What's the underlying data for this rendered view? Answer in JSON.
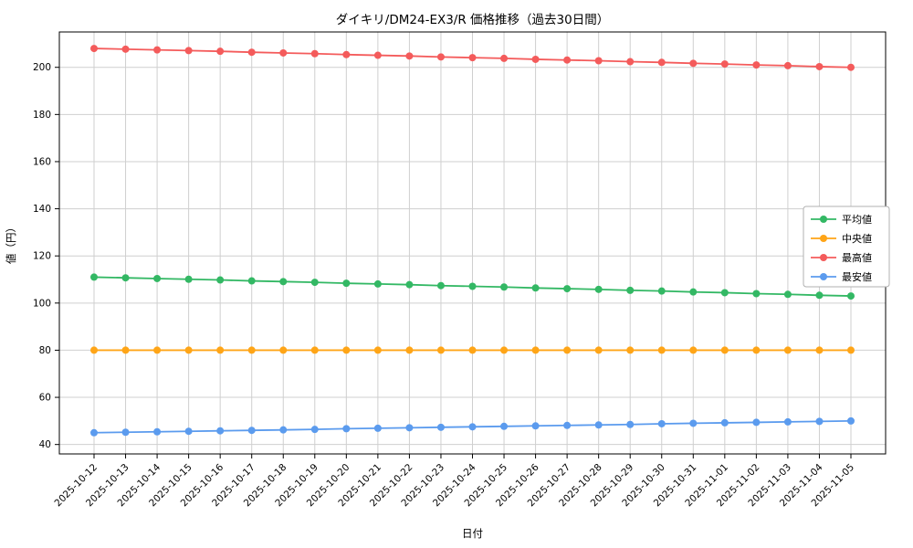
{
  "chart_data": {
    "type": "line",
    "title": "ダイキリ/DM24-EX3/R 価格推移（過去30日間）",
    "xlabel": "日付",
    "ylabel": "値（円）",
    "categories": [
      "2025-10-12",
      "2025-10-13",
      "2025-10-14",
      "2025-10-15",
      "2025-10-16",
      "2025-10-17",
      "2025-10-18",
      "2025-10-19",
      "2025-10-20",
      "2025-10-21",
      "2025-10-22",
      "2025-10-23",
      "2025-10-24",
      "2025-10-25",
      "2025-10-26",
      "2025-10-27",
      "2025-10-28",
      "2025-10-29",
      "2025-10-30",
      "2025-10-31",
      "2025-11-01",
      "2025-11-02",
      "2025-11-03",
      "2025-11-04",
      "2025-11-05"
    ],
    "series": [
      {
        "name": "平均値",
        "color": "#33b864",
        "values": [
          111,
          110.7,
          110.4,
          110.1,
          109.8,
          109.4,
          109.1,
          108.8,
          108.4,
          108.1,
          107.8,
          107.4,
          107.1,
          106.8,
          106.4,
          106.1,
          105.8,
          105.4,
          105.1,
          104.7,
          104.4,
          104.0,
          103.7,
          103.3,
          103.0
        ]
      },
      {
        "name": "中央値",
        "color": "#ffa517",
        "values": [
          80,
          80,
          80,
          80,
          80,
          80,
          80,
          80,
          80,
          80,
          80,
          80,
          80,
          80,
          80,
          80,
          80,
          80,
          80,
          80,
          80,
          80,
          80,
          80,
          80
        ]
      },
      {
        "name": "最高値",
        "color": "#f45b5b",
        "values": [
          208,
          207.7,
          207.4,
          207.1,
          206.8,
          206.4,
          206.1,
          205.8,
          205.4,
          205.1,
          204.8,
          204.4,
          204.1,
          203.8,
          203.4,
          203.1,
          202.8,
          202.4,
          202.1,
          201.7,
          201.4,
          201.0,
          200.7,
          200.3,
          200.0
        ]
      },
      {
        "name": "最安値",
        "color": "#5b9bee",
        "values": [
          45,
          45.2,
          45.4,
          45.6,
          45.8,
          46.0,
          46.2,
          46.4,
          46.7,
          46.9,
          47.1,
          47.3,
          47.5,
          47.7,
          47.9,
          48.1,
          48.3,
          48.5,
          48.8,
          49.0,
          49.2,
          49.4,
          49.6,
          49.8,
          50.0
        ]
      }
    ],
    "ylim": [
      36,
      215
    ],
    "yticks": [
      40,
      60,
      80,
      100,
      120,
      140,
      160,
      180,
      200
    ],
    "grid": true,
    "legend_position": "center-right",
    "legend_order": [
      "平均値",
      "中央値",
      "最高値",
      "最安値"
    ],
    "colors": {
      "grid": "#cfcfcf",
      "frame": "#000000",
      "legend_border": "#b0b0b0",
      "background": "#ffffff"
    }
  }
}
